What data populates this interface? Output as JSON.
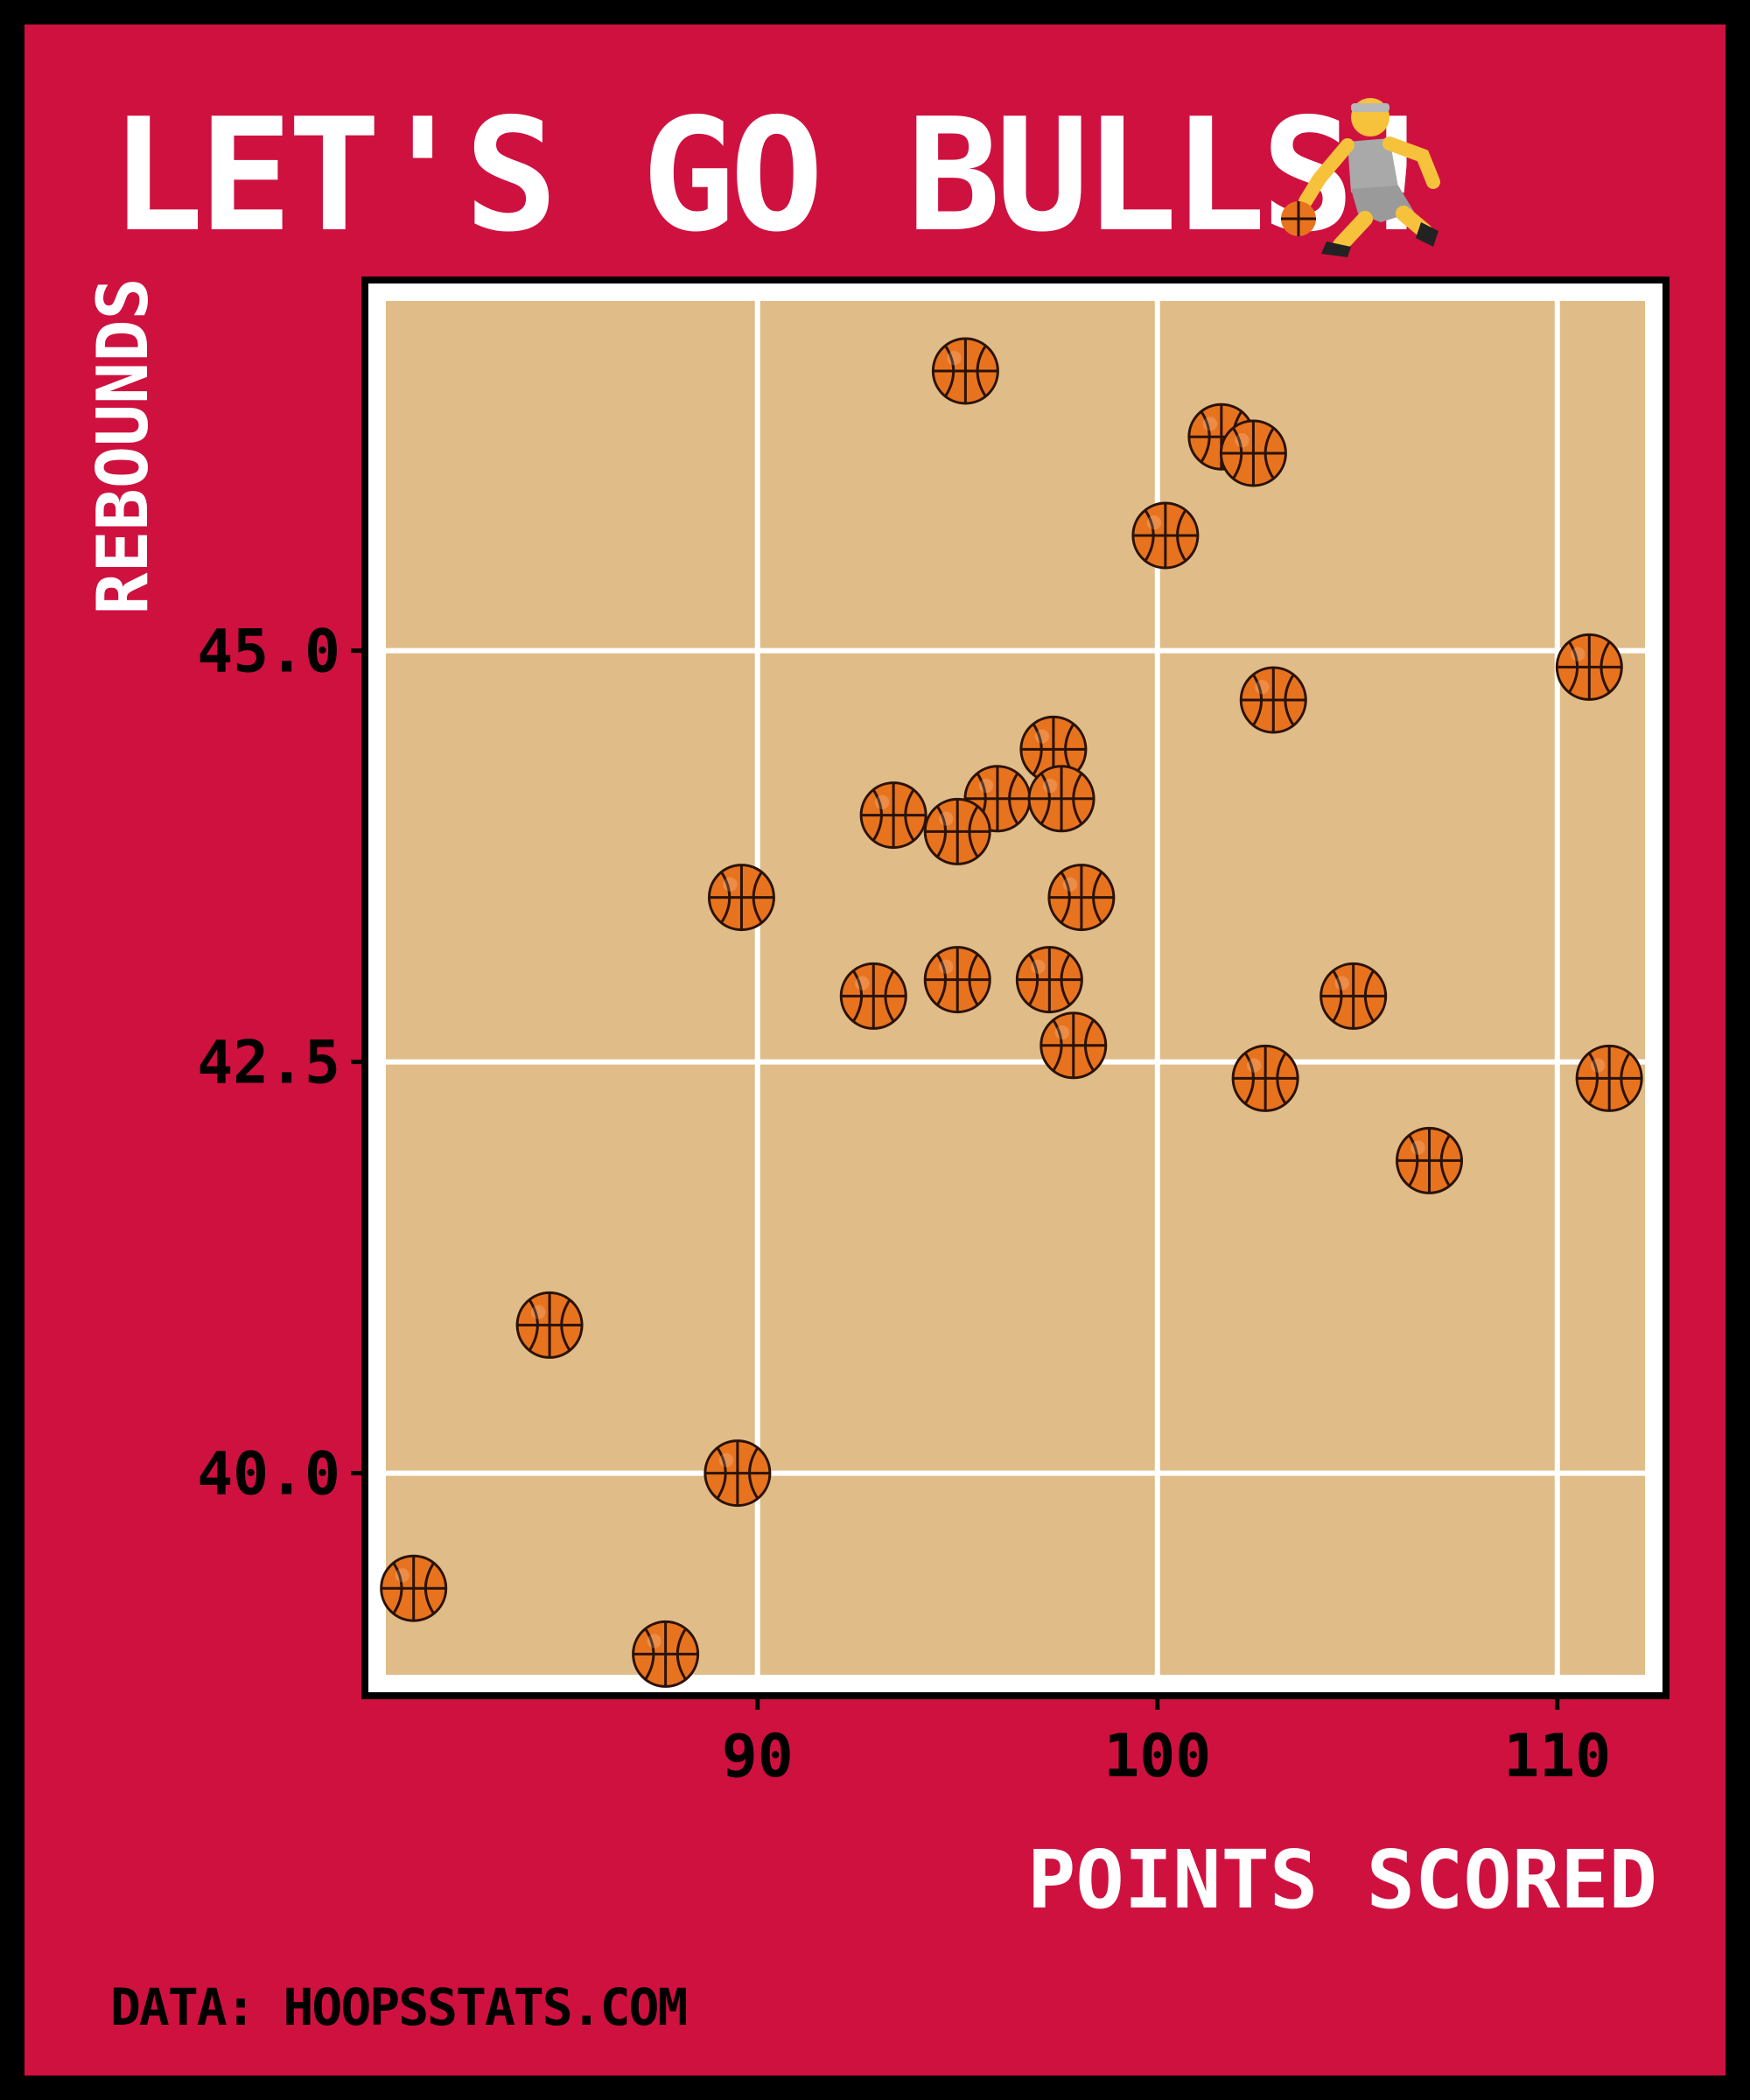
{
  "title": "LET'S GO BULLS!",
  "title_icon": "basketball-player-icon",
  "marker_icon": "basketball-icon",
  "caption": "DATA: HOOPSSTATS.COM",
  "colors": {
    "background": "#cf1140",
    "border": "#000000",
    "panel": "#e0bc88",
    "grid": "#ffffff",
    "ball": "#e8731e",
    "ball_seam": "#2a1206",
    "text_light": "#ffffff",
    "text_dark": "#000000"
  },
  "chart_data": {
    "type": "scatter",
    "xlabel": "POINTS SCORED",
    "ylabel": "REBOUNDS",
    "xlim": [
      80.4,
      112.5
    ],
    "ylim": [
      38.7,
      47.2
    ],
    "x_ticks": [
      90,
      100,
      110
    ],
    "x_tick_labels": [
      "90",
      "100",
      "110"
    ],
    "y_ticks": [
      40.0,
      42.5,
      45.0
    ],
    "y_tick_labels": [
      "40.0",
      "42.5",
      "45.0"
    ],
    "grid": true,
    "legend": null,
    "points": [
      {
        "x": 95.2,
        "y": 46.7
      },
      {
        "x": 101.6,
        "y": 46.3
      },
      {
        "x": 102.4,
        "y": 46.2
      },
      {
        "x": 100.2,
        "y": 45.7
      },
      {
        "x": 110.8,
        "y": 44.9
      },
      {
        "x": 102.9,
        "y": 44.7
      },
      {
        "x": 97.4,
        "y": 44.4
      },
      {
        "x": 96.0,
        "y": 44.1
      },
      {
        "x": 97.6,
        "y": 44.1
      },
      {
        "x": 93.4,
        "y": 44.0
      },
      {
        "x": 95.0,
        "y": 43.9
      },
      {
        "x": 89.6,
        "y": 43.5
      },
      {
        "x": 98.1,
        "y": 43.5
      },
      {
        "x": 92.9,
        "y": 42.9
      },
      {
        "x": 95.0,
        "y": 43.0
      },
      {
        "x": 97.3,
        "y": 43.0
      },
      {
        "x": 104.9,
        "y": 42.9
      },
      {
        "x": 97.9,
        "y": 42.6
      },
      {
        "x": 102.7,
        "y": 42.4
      },
      {
        "x": 111.3,
        "y": 42.4
      },
      {
        "x": 106.8,
        "y": 41.9
      },
      {
        "x": 84.8,
        "y": 40.9
      },
      {
        "x": 89.5,
        "y": 40.0
      },
      {
        "x": 81.4,
        "y": 39.3
      },
      {
        "x": 87.7,
        "y": 38.9
      }
    ]
  }
}
